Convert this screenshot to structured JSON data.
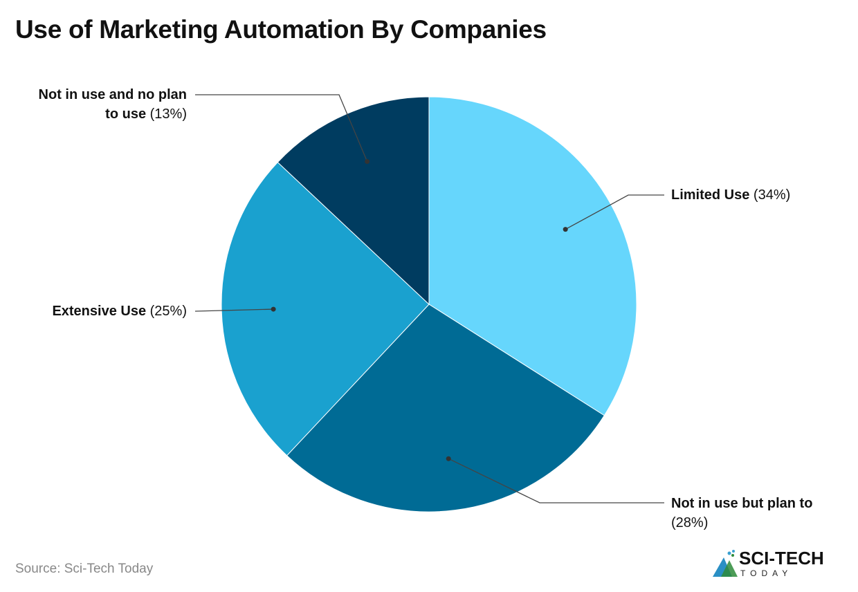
{
  "chart_data": {
    "type": "pie",
    "title": "Use of Marketing Automation By Companies",
    "start_angle": "top, clockwise",
    "slices": [
      {
        "name": "Limited Use",
        "value": 34,
        "label": "(34%)",
        "color": "#66D6FC"
      },
      {
        "name": "Not in use but plan to",
        "value": 28,
        "label": "(28%)",
        "color": "#006B95"
      },
      {
        "name": "Extensive Use",
        "value": 25,
        "label": "(25%)",
        "color": "#1AA1CF"
      },
      {
        "name": "Not in use and no plan to use",
        "value": 13,
        "label": "(13%)",
        "color": "#003C60"
      }
    ]
  },
  "label_lines": {
    "limited": "Limited Use",
    "plan_a": "Not in use but plan to",
    "extensive": "Extensive Use",
    "noplan_a": "Not in use and no plan",
    "noplan_b": "to use"
  },
  "source": "Source: Sci-Tech Today",
  "logo": {
    "main": "SCI-TECH",
    "sub": "TODAY"
  }
}
